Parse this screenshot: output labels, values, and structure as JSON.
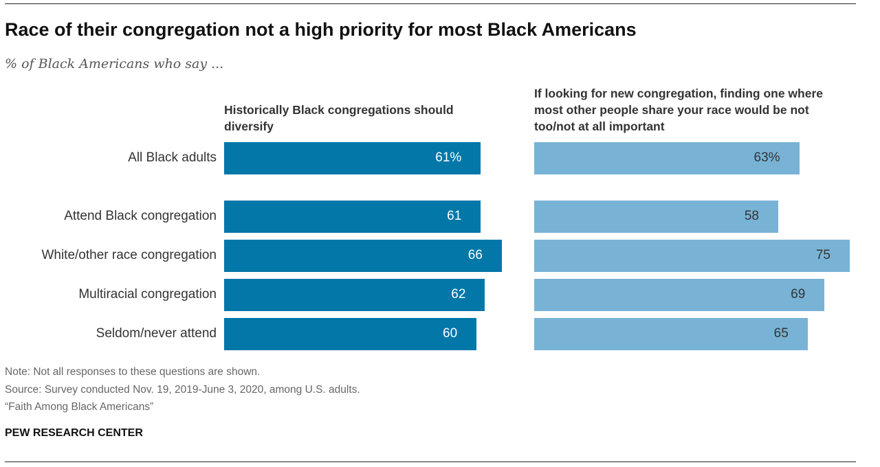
{
  "chart_data": {
    "type": "bar",
    "title": "Race of their congregation not a high priority for most Black Americans",
    "subtitle": "% of Black Americans who say ...",
    "categories": [
      "All Black adults",
      "Attend Black congregation",
      "White/other race congregation",
      "Multiracial congregation",
      "Seldom/never attend"
    ],
    "series": [
      {
        "name": "Historically Black congregations should diversify",
        "values": [
          61,
          61,
          66,
          62,
          60
        ],
        "labels": [
          "61%",
          "61",
          "66",
          "62",
          "60"
        ],
        "color": "#0277a8",
        "label_color": "#ffffff"
      },
      {
        "name": "If looking for new congregation, finding one where most other people share your race would be not too/not at all important",
        "values": [
          63,
          58,
          75,
          69,
          65
        ],
        "labels": [
          "63%",
          "58",
          "75",
          "69",
          "65"
        ],
        "color": "#78b3d6",
        "label_color": "#333333"
      }
    ],
    "xlim": [
      0,
      100
    ]
  },
  "footer": {
    "note": "Note: Not all responses to these questions are shown.",
    "source": "Source: Survey conducted Nov. 19, 2019-June 3, 2020, among U.S. adults.",
    "report": "“Faith Among Black Americans”",
    "brand": "PEW RESEARCH CENTER"
  }
}
